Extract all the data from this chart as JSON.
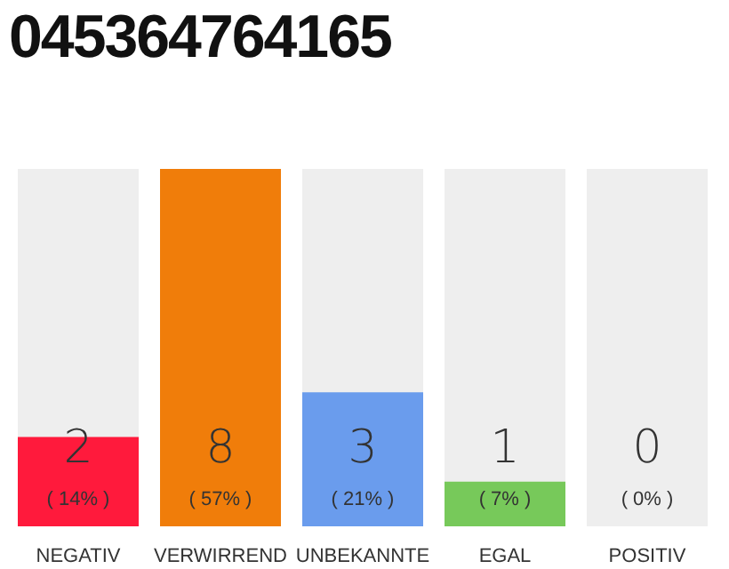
{
  "chart_data": {
    "type": "bar",
    "title": "045364764165",
    "categories": [
      "NEGATIV",
      "VERWIRREND",
      "UNBEKANNTE",
      "EGAL",
      "POSITIV"
    ],
    "values": [
      2,
      8,
      3,
      1,
      0
    ],
    "colors": [
      "#ff1a3c",
      "#f07d0a",
      "#6a9ced",
      "#77c95a",
      "#c8c8c8"
    ],
    "ylim": [
      0,
      8
    ],
    "bands": [
      {
        "axis": "x",
        "from": "NEGATIV",
        "to": "NEGATIV",
        "color": "#eeeeee"
      },
      {
        "axis": "x",
        "from": "UNBEKANNTE",
        "to": "UNBEKANNTE",
        "color": "#eeeeee"
      },
      {
        "axis": "x",
        "from": "EGAL",
        "to": "EGAL",
        "color": "#eeeeee"
      },
      {
        "axis": "x",
        "from": "POSITIV",
        "to": "POSITIV",
        "color": "#eeeeee"
      }
    ],
    "data_labels": true,
    "annotations": [
      "( 14% )",
      "( 57% )",
      "( 21% )",
      "( 7% )",
      "( 0% )"
    ]
  }
}
